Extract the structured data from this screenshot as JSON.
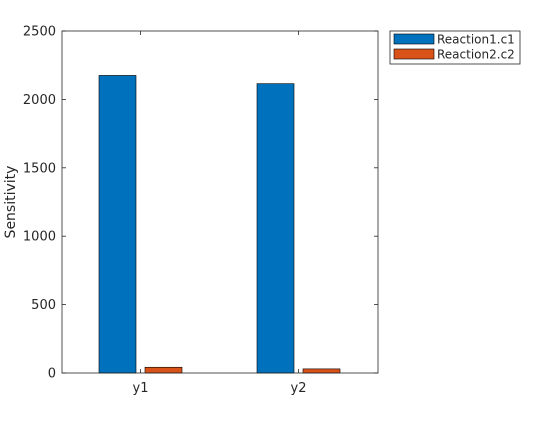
{
  "chart_data": {
    "type": "bar",
    "title": "",
    "xlabel": "",
    "ylabel": "Sensitivity",
    "categories": [
      "y1",
      "y2"
    ],
    "series": [
      {
        "name": "Reaction1.c1",
        "values": [
          2175,
          2115
        ],
        "color": "#0072BD"
      },
      {
        "name": "Reaction2.c2",
        "values": [
          42,
          30
        ],
        "color": "#D95319"
      }
    ],
    "ylim": [
      0,
      2500
    ],
    "yticks": [
      0,
      500,
      1000,
      1500,
      2000,
      2500
    ],
    "grid": false,
    "legend_position": "outside-top-right"
  }
}
